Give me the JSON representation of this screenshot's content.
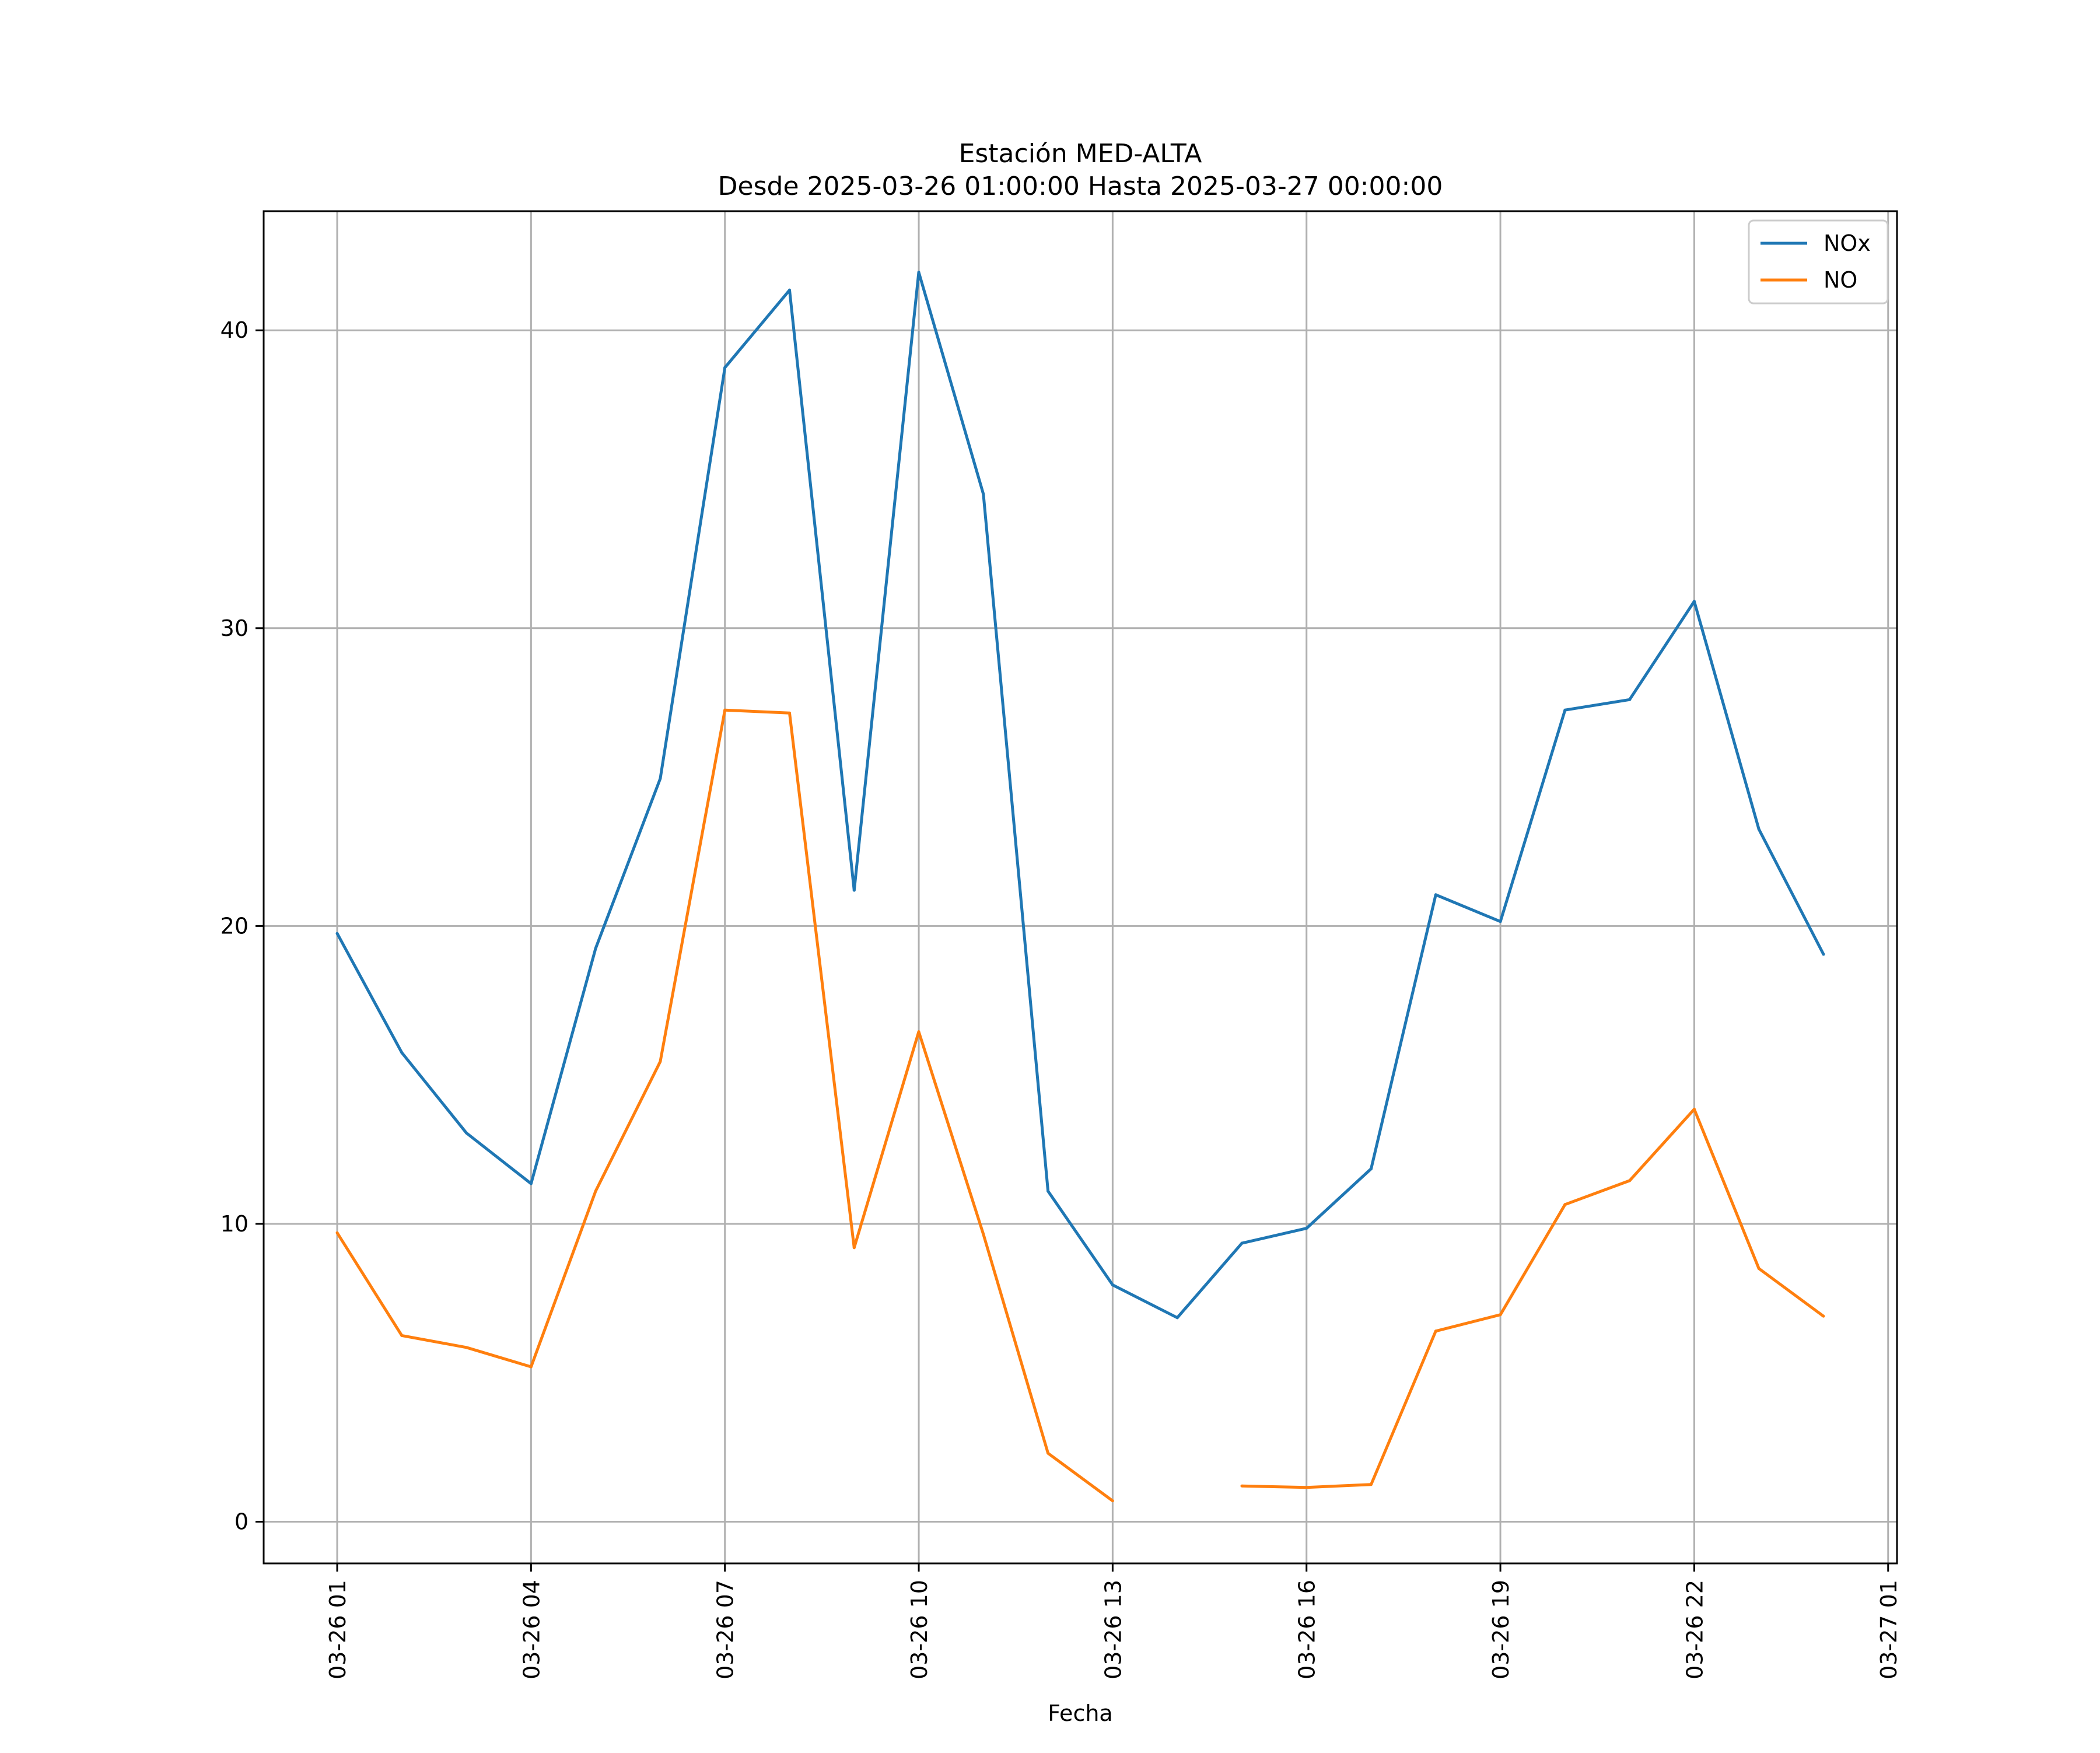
{
  "chart_data": {
    "type": "line",
    "title": "Estación MED-ALTA",
    "subtitle": "Desde 2025-03-26 01:00:00 Hasta 2025-03-27 00:00:00",
    "xlabel": "Fecha",
    "ylabel": "",
    "x": [
      "03-26 01",
      "03-26 02",
      "03-26 03",
      "03-26 04",
      "03-26 05",
      "03-26 06",
      "03-26 07",
      "03-26 08",
      "03-26 09",
      "03-26 10",
      "03-26 11",
      "03-26 12",
      "03-26 13",
      "03-26 14",
      "03-26 15",
      "03-26 16",
      "03-26 17",
      "03-26 18",
      "03-26 19",
      "03-26 20",
      "03-26 21",
      "03-26 22",
      "03-26 23",
      "03-27 00"
    ],
    "x_hours": [
      1,
      2,
      3,
      4,
      5,
      6,
      7,
      8,
      9,
      10,
      11,
      12,
      13,
      14,
      15,
      16,
      17,
      18,
      19,
      20,
      21,
      22,
      23,
      24
    ],
    "xlim_hours": [
      -0.1375,
      25.1375
    ],
    "xticks": [
      {
        "hour": 1,
        "label": "03-26 01"
      },
      {
        "hour": 4,
        "label": "03-26 04"
      },
      {
        "hour": 7,
        "label": "03-26 07"
      },
      {
        "hour": 10,
        "label": "03-26 10"
      },
      {
        "hour": 13,
        "label": "03-26 13"
      },
      {
        "hour": 16,
        "label": "03-26 16"
      },
      {
        "hour": 19,
        "label": "03-26 19"
      },
      {
        "hour": 22,
        "label": "03-26 22"
      },
      {
        "hour": 25,
        "label": "03-27 01"
      }
    ],
    "ylim": [
      -1.4,
      44.0
    ],
    "yticks": [
      0,
      10,
      20,
      30,
      40
    ],
    "grid": true,
    "legend_position": "top-right",
    "series": [
      {
        "name": "NOx",
        "color": "#1f77b4",
        "values": [
          19.75,
          15.75,
          13.05,
          11.35,
          19.25,
          24.95,
          38.75,
          41.35,
          21.2,
          41.95,
          34.5,
          11.1,
          7.95,
          6.85,
          9.35,
          9.85,
          11.85,
          21.05,
          20.15,
          27.25,
          27.6,
          30.9,
          23.25,
          19.05
        ]
      },
      {
        "name": "NO",
        "color": "#ff7f0e",
        "values": [
          9.7,
          6.25,
          5.85,
          5.2,
          11.1,
          15.45,
          27.25,
          27.15,
          9.2,
          16.45,
          9.65,
          2.3,
          0.7,
          null,
          1.2,
          1.15,
          1.25,
          6.4,
          6.95,
          10.65,
          11.45,
          13.85,
          8.5,
          6.9
        ]
      }
    ]
  }
}
